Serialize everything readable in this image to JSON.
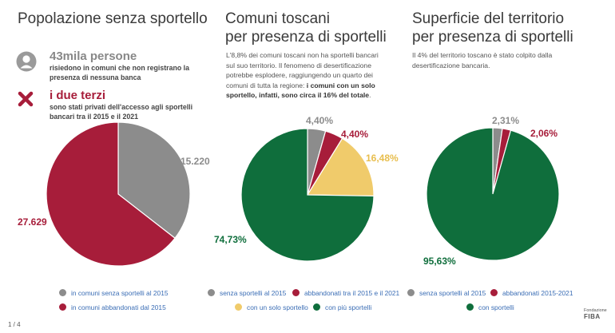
{
  "titles": {
    "t1": "Popolazione senza sportello",
    "t2_line1": "Comuni toscani",
    "t2_line2": "per presenza di sportelli",
    "t3_line1": "Superficie del territorio",
    "t3_line2": "per presenza di sportelli"
  },
  "stats": {
    "people_big": "43mila persone",
    "people_small": "risiedono in comuni che non registrano la presenza di nessuna banca",
    "thirds_big": "i due terzi",
    "thirds_small": "sono stati privati dell'accesso agli sportelli bancari tra il 2015 e il 2021"
  },
  "descriptions": {
    "comuni_plain": "L'8,8% dei comuni toscani non ha sportelli bancari sul suo territorio. Il fenomeno di desertificazione potrebbe esplodere, raggiungendo un quarto dei comuni di tutta la regione: ",
    "comuni_bold": "i comuni con un solo sportello, infatti, sono circa il 16% del totale",
    "comuni_end": ".",
    "superficie": "Il 4% del territorio toscano è stato colpito dalla desertificazione bancaria."
  },
  "colors": {
    "grey": "#8c8c8c",
    "red": "#a71d3a",
    "yellow": "#f0cb6b",
    "green": "#0f6e3c",
    "title": "#3a3a3a",
    "legend_text": "#3a6db5"
  },
  "icons": {
    "person": "person-icon",
    "cross": "cross-icon"
  },
  "chart_data": [
    {
      "type": "pie",
      "title": "Popolazione senza sportello",
      "categories": [
        "in comuni senza sportelli al 2015",
        "in comuni abbandonati dal 2015"
      ],
      "values": [
        15220,
        27629
      ],
      "labels": [
        "15.220",
        "27.629"
      ],
      "colors": [
        "#8c8c8c",
        "#a71d3a"
      ],
      "legend_placement": "bottom"
    },
    {
      "type": "pie",
      "title": "Comuni toscani per presenza di sportelli",
      "categories": [
        "senza sportelli al 2015",
        "abbandonati tra il 2015 e il 2021",
        "con un solo sportello",
        "con più sportelli"
      ],
      "values": [
        4.4,
        4.4,
        16.48,
        74.73
      ],
      "labels": [
        "4,40%",
        "4,40%",
        "16,48%",
        "74,73%"
      ],
      "colors": [
        "#8c8c8c",
        "#a71d3a",
        "#f0cb6b",
        "#0f6e3c"
      ],
      "legend_placement": "bottom"
    },
    {
      "type": "pie",
      "title": "Superficie del territorio per presenza di sportelli",
      "categories": [
        "senza sportelli al 2015",
        "abbandonati 2015-2021",
        "con sportelli"
      ],
      "values": [
        2.31,
        2.06,
        95.63
      ],
      "labels": [
        "2,31%",
        "2,06%",
        "95,63%"
      ],
      "colors": [
        "#8c8c8c",
        "#a71d3a",
        "#0f6e3c"
      ],
      "legend_placement": "bottom"
    }
  ],
  "footer": {
    "page": "1 / 4",
    "logo_line1": "Fondazione",
    "logo_line2": "FIBA"
  }
}
